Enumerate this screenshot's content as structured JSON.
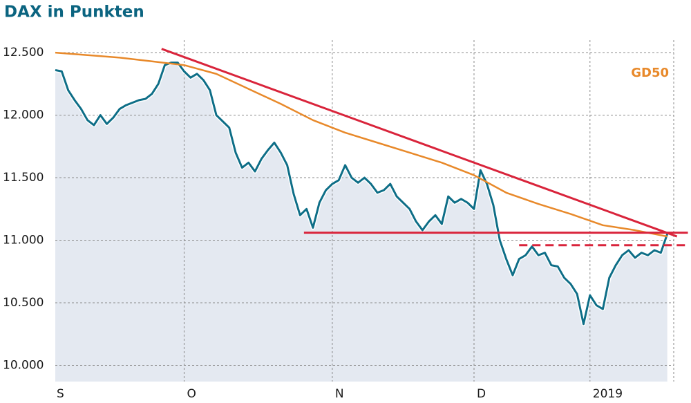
{
  "chart_data": {
    "type": "line",
    "title": "DAX in Punkten",
    "xlim": [
      0,
      96
    ],
    "xticks": [
      {
        "value": 0,
        "label": "S"
      },
      {
        "value": 20,
        "label": "O"
      },
      {
        "value": 43,
        "label": "N"
      },
      {
        "value": 65,
        "label": "D"
      },
      {
        "value": 83,
        "label": "2019"
      }
    ],
    "ylim": [
      9870,
      12600
    ],
    "yticks": [
      {
        "value": 10000,
        "label": "10.000"
      },
      {
        "value": 10500,
        "label": "10.500"
      },
      {
        "value": 11000,
        "label": "11.000"
      },
      {
        "value": 11500,
        "label": "11.500"
      },
      {
        "value": 12000,
        "label": "12.000"
      },
      {
        "value": 12500,
        "label": "12.500"
      }
    ],
    "grid": true,
    "series": [
      {
        "color": "#0e6e87",
        "area": true,
        "x": [
          0,
          1,
          2,
          3,
          4,
          5,
          6,
          7,
          8,
          9,
          10,
          11,
          12,
          13,
          14,
          15,
          16,
          17,
          18,
          19,
          20,
          21,
          22,
          23,
          24,
          25,
          26,
          27,
          28,
          29,
          30,
          31,
          32,
          33,
          34,
          35,
          36,
          37,
          38,
          39,
          40,
          41,
          42,
          43,
          44,
          45,
          46,
          47,
          48,
          49,
          50,
          51,
          52,
          53,
          54,
          55,
          56,
          57,
          58,
          59,
          60,
          61,
          62,
          63,
          64,
          65,
          66,
          67,
          68,
          69,
          70,
          71,
          72,
          73,
          74,
          75,
          76,
          77,
          78,
          79,
          80,
          81,
          82,
          83,
          84,
          85,
          86,
          87,
          88,
          89,
          90,
          91,
          92,
          93,
          94,
          95
        ],
        "values": [
          12360,
          12350,
          12200,
          12120,
          12050,
          11960,
          11920,
          12000,
          11930,
          11980,
          12050,
          12080,
          12100,
          12120,
          12130,
          12170,
          12250,
          12400,
          12420,
          12420,
          12350,
          12300,
          12330,
          12280,
          12200,
          12000,
          11950,
          11900,
          11700,
          11580,
          11620,
          11550,
          11650,
          11720,
          11780,
          11700,
          11600,
          11370,
          11200,
          11250,
          11100,
          11300,
          11400,
          11450,
          11480,
          11600,
          11500,
          11460,
          11500,
          11450,
          11380,
          11400,
          11450,
          11350,
          11300,
          11250,
          11150,
          11080,
          11150,
          11200,
          11130,
          11350,
          11300,
          11330,
          11300,
          11250,
          11560,
          11450,
          11280,
          11000,
          10850,
          10720,
          10850,
          10880,
          10950,
          10880,
          10900,
          10800,
          10790,
          10700,
          10650,
          10570,
          10330,
          10560,
          10480,
          10450,
          10700,
          10800,
          10880,
          10920,
          10860,
          10900,
          10880,
          10920,
          10900,
          11050
        ]
      },
      {
        "name": "GD50",
        "color": "#e8892a",
        "x": [
          0,
          5,
          10,
          15,
          20,
          25,
          30,
          35,
          40,
          45,
          50,
          55,
          60,
          65,
          70,
          75,
          80,
          85,
          90,
          95
        ],
        "values": [
          12500,
          12480,
          12460,
          12430,
          12400,
          12330,
          12210,
          12090,
          11960,
          11860,
          11780,
          11700,
          11620,
          11520,
          11380,
          11290,
          11210,
          11120,
          11080,
          11030
        ]
      }
    ],
    "lines": [
      {
        "color": "#d9243b",
        "dashed": false,
        "x": [
          16.5,
          96.5
        ],
        "y": [
          12530,
          11030
        ]
      },
      {
        "color": "#d9243b",
        "dashed": false,
        "x": [
          38.6,
          98.2
        ],
        "y": [
          11060,
          11060
        ]
      },
      {
        "color": "#d9243b",
        "dashed": true,
        "x": [
          72,
          98.2
        ],
        "y": [
          10960,
          10960
        ]
      }
    ]
  }
}
